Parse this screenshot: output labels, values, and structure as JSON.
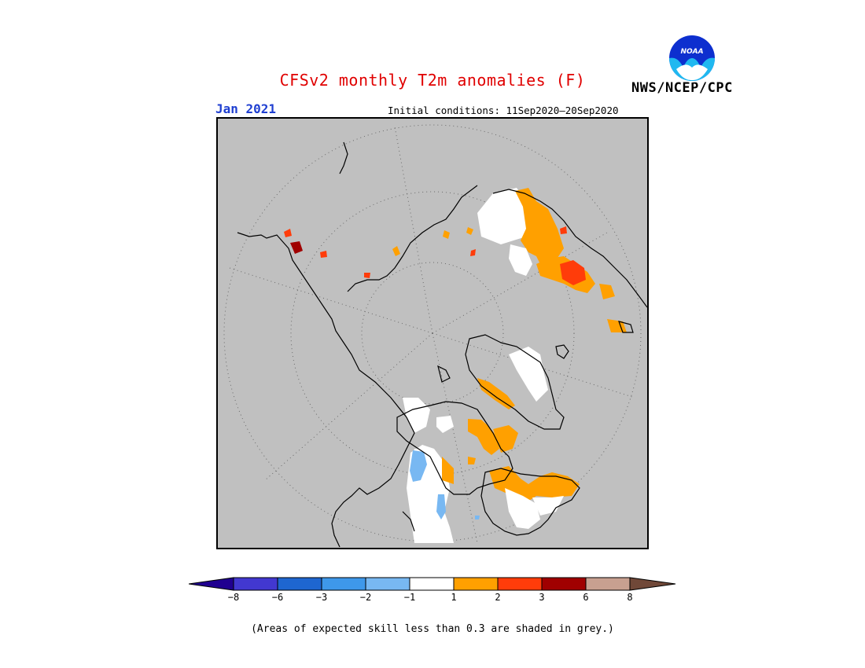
{
  "header": {
    "title": "CFSv2 monthly T2m anomalies (F)",
    "month": "Jan 2021",
    "initial_conditions": "Initial conditions: 11Sep2020—20Sep2020",
    "agency": "NWS/NCEP/CPC",
    "logo_text": "NOAA"
  },
  "map": {
    "projection": "polar-stereographic",
    "region": "north-polar",
    "background_color": "#c0c0c0",
    "grid": true
  },
  "legend": {
    "colors": [
      "#200090",
      "#4238d0",
      "#1e66d0",
      "#3e98ea",
      "#78b8f2",
      "#ffffff",
      "#ffa000",
      "#ff3c0a",
      "#a00000",
      "#c8a090",
      "#704838"
    ],
    "labels": [
      "−8",
      "−6",
      "−3",
      "−2",
      "−1",
      "1",
      "2",
      "3",
      "6",
      "8"
    ]
  },
  "footnote": "(Areas of expected skill less than 0.3 are shaded in grey.)"
}
